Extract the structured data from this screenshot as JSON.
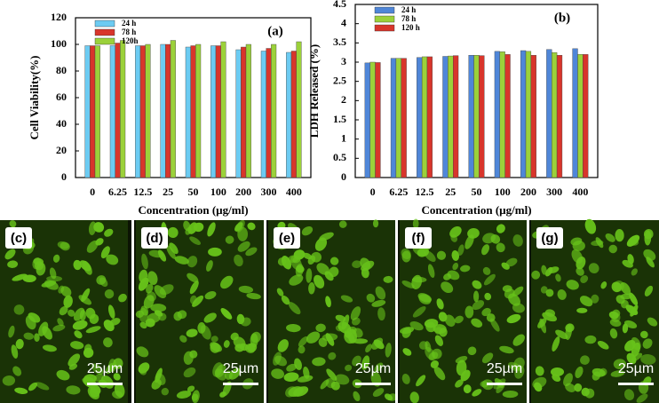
{
  "chart_data": [
    {
      "type": "bar",
      "annotation": "(a)",
      "y_label": "Cell Viability(%)",
      "x_label": "Concentration (µg/ml)",
      "categories": [
        "0",
        "6.25",
        "12.5",
        "25",
        "50",
        "100",
        "200",
        "300",
        "400"
      ],
      "series": [
        {
          "name": "24 h",
          "color": "#6ccbf2",
          "values": [
            99,
            99,
            99,
            100,
            98,
            99,
            96,
            95,
            94
          ]
        },
        {
          "name": "78 h",
          "color": "#d8352b",
          "values": [
            99,
            101,
            99,
            100,
            99,
            99,
            98,
            97,
            95
          ]
        },
        {
          "name": "120h",
          "color": "#9bd13a",
          "values": [
            99,
            103,
            100,
            103,
            100,
            102,
            100,
            100,
            102
          ]
        }
      ],
      "ylim": [
        0,
        120
      ],
      "yticks": [
        0,
        20,
        40,
        60,
        80,
        100,
        120
      ],
      "legend": "upper left"
    },
    {
      "type": "bar",
      "annotation": "(b)",
      "y_label": "LDH Released (%)",
      "x_label": "Concentration (µg/ml)",
      "categories": [
        "0",
        "6.25",
        "12.5",
        "25",
        "50",
        "100",
        "200",
        "300",
        "400"
      ],
      "series": [
        {
          "name": "24 h",
          "color": "#4f86d8",
          "values": [
            2.98,
            3.1,
            3.12,
            3.15,
            3.18,
            3.28,
            3.3,
            3.33,
            3.35
          ]
        },
        {
          "name": "78 h",
          "color": "#9bd13a",
          "values": [
            3.0,
            3.1,
            3.14,
            3.16,
            3.18,
            3.27,
            3.28,
            3.25,
            3.2
          ]
        },
        {
          "name": "120 h",
          "color": "#d8352b",
          "values": [
            2.99,
            3.1,
            3.14,
            3.17,
            3.17,
            3.2,
            3.18,
            3.18,
            3.2
          ]
        }
      ],
      "ylim": [
        0,
        4.5
      ],
      "yticks": [
        0,
        0.5,
        1,
        1.5,
        2,
        2.5,
        3,
        3.5,
        4,
        4.5
      ],
      "legend": "upper left"
    }
  ],
  "images": [
    {
      "label": "(c)",
      "scale": "25µm"
    },
    {
      "label": "(d)",
      "scale": "25µm"
    },
    {
      "label": "(e)",
      "scale": "25µm"
    },
    {
      "label": "(f)",
      "scale": "25µm"
    },
    {
      "label": "(g)",
      "scale": "25µm"
    }
  ]
}
